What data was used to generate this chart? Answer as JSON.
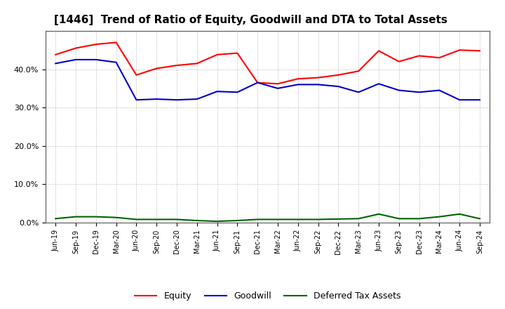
{
  "title": "[1446]  Trend of Ratio of Equity, Goodwill and DTA to Total Assets",
  "labels": [
    "Jun-19",
    "Sep-19",
    "Dec-19",
    "Mar-20",
    "Jun-20",
    "Sep-20",
    "Dec-20",
    "Mar-21",
    "Jun-21",
    "Sep-21",
    "Dec-21",
    "Mar-22",
    "Jun-22",
    "Sep-22",
    "Dec-22",
    "Mar-23",
    "Jun-23",
    "Sep-23",
    "Dec-23",
    "Mar-24",
    "Jun-24",
    "Sep-24"
  ],
  "equity": [
    43.8,
    45.5,
    46.5,
    47.0,
    38.5,
    40.2,
    41.0,
    41.5,
    43.8,
    44.2,
    36.5,
    36.2,
    37.5,
    37.8,
    38.5,
    39.5,
    44.8,
    42.0,
    43.5,
    43.0,
    45.0,
    44.8
  ],
  "goodwill": [
    41.5,
    42.5,
    42.5,
    41.8,
    32.0,
    32.2,
    32.0,
    32.2,
    34.2,
    34.0,
    36.5,
    35.0,
    36.0,
    36.0,
    35.5,
    34.0,
    36.2,
    34.5,
    34.0,
    34.5,
    32.0,
    32.0
  ],
  "dta": [
    1.0,
    1.5,
    1.5,
    1.3,
    0.8,
    0.8,
    0.8,
    0.5,
    0.3,
    0.5,
    0.8,
    0.8,
    0.8,
    0.8,
    0.9,
    1.0,
    2.2,
    1.0,
    1.0,
    1.5,
    2.2,
    1.0
  ],
  "equity_color": "#ff0000",
  "goodwill_color": "#0000cc",
  "dta_color": "#006400",
  "ylim_min": 0,
  "ylim_max": 50,
  "yticks": [
    0,
    10,
    20,
    30,
    40
  ],
  "background_color": "#ffffff",
  "plot_bg_color": "#ffffff",
  "grid_color": "#aaaaaa",
  "title_fontsize": 11,
  "tick_fontsize": 7,
  "legend_fontsize": 9,
  "legend_labels": [
    "Equity",
    "Goodwill",
    "Deferred Tax Assets"
  ],
  "linewidth": 1.5
}
